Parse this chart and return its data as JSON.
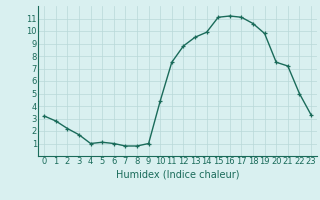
{
  "x": [
    0,
    1,
    2,
    3,
    4,
    5,
    6,
    7,
    8,
    9,
    10,
    11,
    12,
    13,
    14,
    15,
    16,
    17,
    18,
    19,
    20,
    21,
    22,
    23
  ],
  "y": [
    3.2,
    2.8,
    2.2,
    1.7,
    1.0,
    1.1,
    1.0,
    0.8,
    0.8,
    1.0,
    4.4,
    7.5,
    8.8,
    9.5,
    9.9,
    11.1,
    11.2,
    11.1,
    10.6,
    9.8,
    7.5,
    7.2,
    5.0,
    3.3
  ],
  "line_color": "#1a6b5a",
  "marker": "+",
  "bg_color": "#d9f0f0",
  "grid_color": "#b8d8d8",
  "xlabel": "Humidex (Indice chaleur)",
  "xlim": [
    -0.5,
    23.5
  ],
  "ylim": [
    0.0,
    12.0
  ],
  "yticks": [
    1,
    2,
    3,
    4,
    5,
    6,
    7,
    8,
    9,
    10,
    11
  ],
  "xticks": [
    0,
    1,
    2,
    3,
    4,
    5,
    6,
    7,
    8,
    9,
    10,
    11,
    12,
    13,
    14,
    15,
    16,
    17,
    18,
    19,
    20,
    21,
    22,
    23
  ],
  "tick_color": "#1a6b5a",
  "xlabel_color": "#1a6b5a",
  "xlabel_fontsize": 7,
  "tick_fontsize": 6,
  "linewidth": 1.0,
  "markersize": 3.5,
  "markeredgewidth": 0.9
}
